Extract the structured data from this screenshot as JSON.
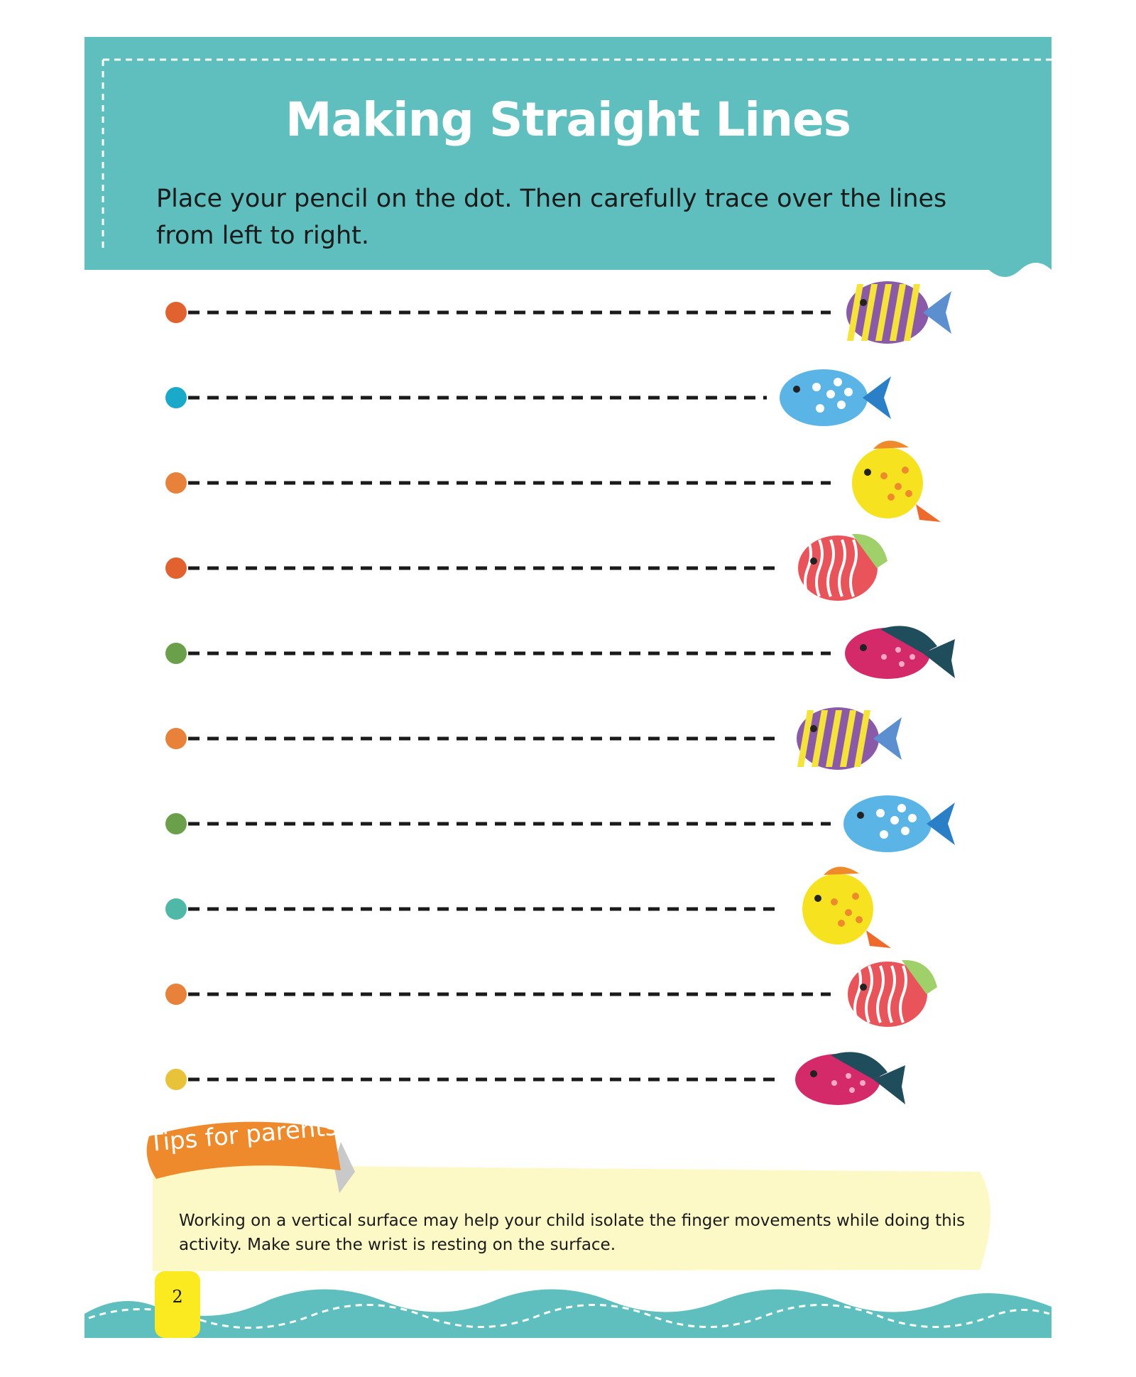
{
  "header": {
    "title": "Making Straight Lines",
    "instructions": "Place your pencil on the dot. Then carefully trace over the lines from left to right.",
    "color": "#5fbfbf"
  },
  "tracing_rows": [
    {
      "dot_color": "#e2622f",
      "fish": "purple-striped-fish-icon"
    },
    {
      "dot_color": "#1aa9c9",
      "fish": "blue-spotted-fish-icon"
    },
    {
      "dot_color": "#e8823a",
      "fish": "yellow-spotted-fish-icon"
    },
    {
      "dot_color": "#e2622f",
      "fish": "red-wavy-fish-icon"
    },
    {
      "dot_color": "#6ba04a",
      "fish": "magenta-spotted-fish-icon"
    },
    {
      "dot_color": "#e8823a",
      "fish": "purple-striped-fish-icon"
    },
    {
      "dot_color": "#6ba04a",
      "fish": "blue-spotted-fish-icon"
    },
    {
      "dot_color": "#4fb8a6",
      "fish": "yellow-spotted-fish-icon"
    },
    {
      "dot_color": "#e8823a",
      "fish": "red-wavy-fish-icon"
    },
    {
      "dot_color": "#e8c33a",
      "fish": "magenta-spotted-fish-icon"
    }
  ],
  "tips": {
    "label": "Tips for parents",
    "text": "Working on a vertical surface may help your child isolate the finger movements while doing this activity. Make sure the wrist is resting on the surface.",
    "tag_color": "#ee8a2c",
    "box_color": "#fdf9c7"
  },
  "footer": {
    "page_number": "2",
    "tab_color": "#fbea1f"
  }
}
